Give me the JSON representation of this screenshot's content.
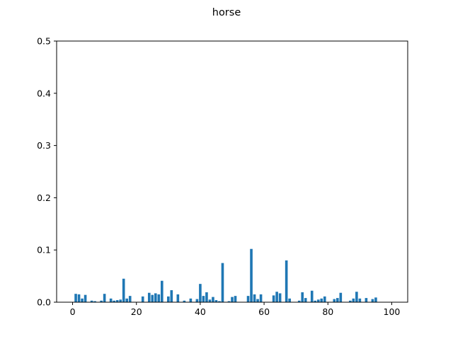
{
  "chart_data": {
    "type": "bar",
    "title": "horse",
    "xlabel": "",
    "ylabel": "",
    "xlim": [
      -5,
      105
    ],
    "ylim": [
      0,
      0.5
    ],
    "xticks": [
      0,
      20,
      40,
      60,
      80,
      100
    ],
    "xtick_labels": [
      "0",
      "20",
      "40",
      "60",
      "80",
      "100"
    ],
    "yticks": [
      0.0,
      0.1,
      0.2,
      0.3,
      0.4,
      0.5
    ],
    "ytick_labels": [
      "0.0",
      "0.1",
      "0.2",
      "0.3",
      "0.4",
      "0.5"
    ],
    "grid": false,
    "bar_color": "#1f77b4",
    "x": [
      0,
      1,
      2,
      3,
      4,
      5,
      6,
      7,
      8,
      9,
      10,
      11,
      12,
      13,
      14,
      15,
      16,
      17,
      18,
      19,
      20,
      21,
      22,
      23,
      24,
      25,
      26,
      27,
      28,
      29,
      30,
      31,
      32,
      33,
      34,
      35,
      36,
      37,
      38,
      39,
      40,
      41,
      42,
      43,
      44,
      45,
      46,
      47,
      48,
      49,
      50,
      51,
      52,
      53,
      54,
      55,
      56,
      57,
      58,
      59,
      60,
      61,
      62,
      63,
      64,
      65,
      66,
      67,
      68,
      69,
      70,
      71,
      72,
      73,
      74,
      75,
      76,
      77,
      78,
      79,
      80,
      81,
      82,
      83,
      84,
      85,
      86,
      87,
      88,
      89,
      90,
      91,
      92,
      93,
      94,
      95,
      96,
      97,
      98,
      99
    ],
    "values": [
      0.0,
      0.016,
      0.015,
      0.007,
      0.014,
      0.0,
      0.003,
      0.002,
      0.0,
      0.003,
      0.016,
      0.0,
      0.007,
      0.003,
      0.004,
      0.005,
      0.045,
      0.007,
      0.012,
      0.0,
      0.0,
      0.0,
      0.011,
      0.0,
      0.018,
      0.014,
      0.017,
      0.015,
      0.041,
      0.0,
      0.011,
      0.023,
      0.0,
      0.015,
      0.0,
      0.003,
      0.0,
      0.007,
      0.0,
      0.006,
      0.035,
      0.012,
      0.019,
      0.005,
      0.01,
      0.004,
      0.002,
      0.075,
      0.0,
      0.002,
      0.01,
      0.012,
      0.0,
      0.0,
      0.0,
      0.012,
      0.102,
      0.015,
      0.006,
      0.015,
      0.0,
      0.0,
      0.0,
      0.013,
      0.02,
      0.017,
      0.0,
      0.08,
      0.007,
      0.0,
      0.0,
      0.003,
      0.019,
      0.008,
      0.0,
      0.022,
      0.003,
      0.005,
      0.007,
      0.011,
      0.0,
      0.0,
      0.006,
      0.008,
      0.018,
      0.0,
      0.0,
      0.003,
      0.007,
      0.02,
      0.007,
      0.0,
      0.008,
      0.0,
      0.006,
      0.009,
      0.0,
      0.0,
      0.0,
      0.0
    ]
  }
}
